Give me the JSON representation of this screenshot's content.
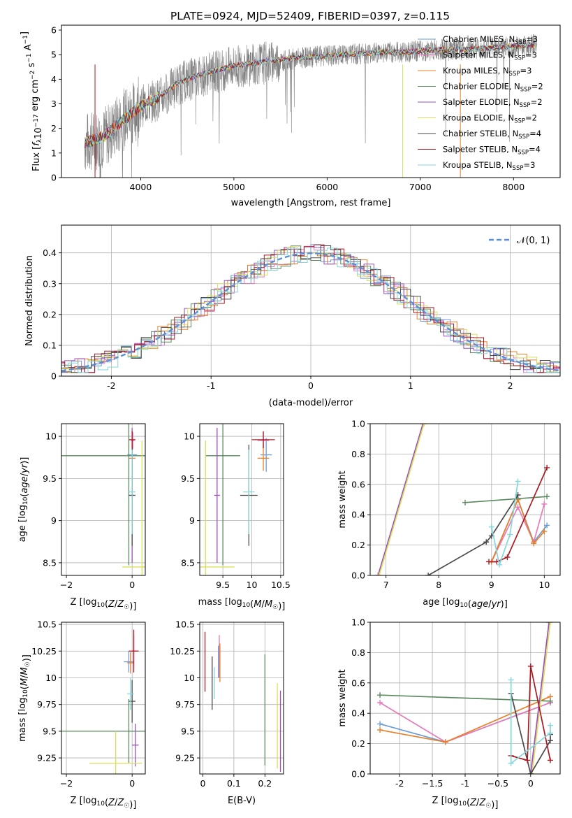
{
  "figure": {
    "title": "PLATE=0924, MJD=52409, FIBERID=0397, z=0.115"
  },
  "legend_models": [
    {
      "name": "Chabrier MILES",
      "nssp": "3",
      "color": "#6a9bd8"
    },
    {
      "name": "Salpeter MILES",
      "nssp": "3",
      "color": "#e77ab8"
    },
    {
      "name": "Kroupa MILES",
      "nssp": "3",
      "color": "#e8802a"
    },
    {
      "name": "Chabrier ELODIE",
      "nssp": "2",
      "color": "#5a8a5e"
    },
    {
      "name": "Salpeter ELODIE",
      "nssp": "2",
      "color": "#9b4fc0"
    },
    {
      "name": "Kroupa ELODIE",
      "nssp": "2",
      "color": "#d8e05a"
    },
    {
      "name": "Chabrier STELIB",
      "nssp": "4",
      "color": "#4a4a4a"
    },
    {
      "name": "Salpeter STELIB",
      "nssp": "4",
      "color": "#a81a22"
    },
    {
      "name": "Kroupa STELIB",
      "nssp": "3",
      "color": "#86d6dc"
    }
  ],
  "chart_data": [
    {
      "id": "spectrum",
      "type": "line",
      "xlabel": "wavelength [Angstrom, rest frame]",
      "ylabel": "Flux [f_λ 10^-17 erg cm^-2 s^-1 A^-1]",
      "xlim": [
        3150,
        8500
      ],
      "ylim": [
        0,
        6.2
      ],
      "xticks": [
        4000,
        5000,
        6000,
        7000,
        8000
      ],
      "yticks": [
        0,
        1,
        2,
        3,
        4,
        5,
        6
      ],
      "grid": false,
      "legend": "right",
      "observed": {
        "color": "#808080",
        "x": [
          3400,
          3600,
          3800,
          4000,
          4200,
          4400,
          4600,
          4800,
          5000,
          5200,
          5400,
          5600,
          5800,
          6000,
          6200,
          6400,
          6600,
          6800,
          7000,
          7200,
          7400,
          7600,
          7800,
          8000,
          8200
        ],
        "y": [
          1.4,
          1.6,
          2.3,
          2.9,
          3.2,
          3.8,
          4.1,
          4.3,
          4.5,
          4.6,
          4.7,
          4.8,
          4.9,
          4.95,
          5.0,
          5.05,
          5.1,
          5.1,
          5.15,
          5.2,
          5.2,
          5.25,
          5.3,
          5.35,
          5.4
        ]
      },
      "model": {
        "x": [
          3400,
          3600,
          3800,
          4000,
          4200,
          4400,
          4600,
          4800,
          5000,
          5200,
          5400,
          5600,
          5800,
          6000,
          6200,
          6400,
          6600,
          6800,
          7000,
          7200,
          7400,
          7600,
          7800,
          8000,
          8200
        ],
        "y": [
          1.4,
          1.65,
          2.3,
          2.9,
          3.3,
          3.85,
          4.15,
          4.35,
          4.55,
          4.65,
          4.75,
          4.85,
          4.9,
          4.95,
          5.0,
          5.05,
          5.1,
          5.1,
          5.15,
          5.2,
          5.2,
          5.25,
          5.3,
          5.35,
          5.4
        ]
      }
    },
    {
      "id": "residuals",
      "type": "line",
      "xlabel": "(data-model)/error",
      "ylabel": "Normed distribution",
      "xlim": [
        -2.5,
        2.5
      ],
      "ylim": [
        0,
        0.49
      ],
      "xticks": [
        -2,
        -1,
        0,
        1,
        2
      ],
      "yticks": [
        0.0,
        0.1,
        0.2,
        0.3,
        0.4
      ],
      "grid": true,
      "legend": "top-right",
      "normal_label": "𝒩(0, 1)",
      "normal_color": "#5b8fd6"
    },
    {
      "id": "age-Z",
      "type": "scatter",
      "xlabel": "Z [log10(Z/Z☉)]",
      "ylabel": "age [log10(age/yr)]",
      "xlim": [
        -2.15,
        0.4
      ],
      "ylim": [
        8.35,
        10.15
      ],
      "xticks": [
        -2,
        0
      ],
      "yticks": [
        8.5,
        9.0,
        9.5,
        10.0
      ],
      "grid": true,
      "points": [
        {
          "model": 0,
          "x": 0.0,
          "y": 9.78,
          "xerr": 0.15,
          "yerr": 0.2
        },
        {
          "model": 1,
          "x": 0.02,
          "y": 9.95,
          "xerr": 0.05,
          "yerr": 0.1
        },
        {
          "model": 2,
          "x": 0.0,
          "y": 9.74,
          "xerr": 0.1,
          "yerr": 0.15
        },
        {
          "model": 3,
          "x": -0.1,
          "y": 9.77,
          "xerr": 2.1,
          "yerr": 1.3
        },
        {
          "model": 4,
          "x": 0.0,
          "y": 9.3,
          "xerr": 0.05,
          "yerr": 0.8
        },
        {
          "model": 5,
          "x": 0.3,
          "y": 8.45,
          "xerr": 0.6,
          "yerr": 1.5
        },
        {
          "model": 6,
          "x": 0.0,
          "y": 9.3,
          "xerr": 0.1,
          "yerr": 0.6
        },
        {
          "model": 7,
          "x": 0.0,
          "y": 9.96,
          "xerr": 0.1,
          "yerr": 0.1
        },
        {
          "model": 8,
          "x": 0.0,
          "y": 9.34,
          "xerr": 0.1,
          "yerr": 0.5
        }
      ]
    },
    {
      "id": "age-mass",
      "type": "scatter",
      "xlabel": "mass [log10(M/M☉)]",
      "ylabel": "",
      "xlim": [
        9.1,
        10.55
      ],
      "ylim": [
        8.35,
        10.15
      ],
      "xticks": [
        9.5,
        10.0,
        10.5
      ],
      "yticks": [
        8.5,
        9.0,
        9.5,
        10.0
      ],
      "grid": true,
      "points": [
        {
          "model": 0,
          "x": 10.25,
          "y": 9.78,
          "xerr": 0.1,
          "yerr": 0.2
        },
        {
          "model": 1,
          "x": 10.2,
          "y": 9.95,
          "xerr": 0.1,
          "yerr": 0.1
        },
        {
          "model": 2,
          "x": 10.2,
          "y": 9.74,
          "xerr": 0.1,
          "yerr": 0.15
        },
        {
          "model": 3,
          "x": 9.5,
          "y": 9.77,
          "xerr": 0.3,
          "yerr": 1.3
        },
        {
          "model": 4,
          "x": 9.4,
          "y": 9.3,
          "xerr": 0.05,
          "yerr": 0.8
        },
        {
          "model": 5,
          "x": 9.2,
          "y": 8.45,
          "xerr": 0.5,
          "yerr": 1.5
        },
        {
          "model": 6,
          "x": 9.95,
          "y": 9.3,
          "xerr": 0.15,
          "yerr": 0.6
        },
        {
          "model": 7,
          "x": 10.2,
          "y": 9.96,
          "xerr": 0.2,
          "yerr": 0.1
        },
        {
          "model": 8,
          "x": 9.95,
          "y": 9.34,
          "xerr": 0.1,
          "yerr": 0.5
        }
      ]
    },
    {
      "id": "weight-age",
      "type": "line",
      "xlabel": "age [log10(age/yr)]",
      "ylabel": "mass weight",
      "xlim": [
        6.7,
        10.3
      ],
      "ylim": [
        0,
        1.0
      ],
      "xticks": [
        7,
        8,
        9,
        10
      ],
      "yticks": [
        0.0,
        0.2,
        0.4,
        0.6,
        0.8,
        1.0
      ],
      "grid": true,
      "series": [
        {
          "model": 0,
          "x": [
            9.0,
            9.5,
            9.8,
            10.05
          ],
          "y": [
            0.09,
            0.5,
            0.22,
            0.33
          ]
        },
        {
          "model": 1,
          "x": [
            9.0,
            9.5,
            9.8,
            10.0
          ],
          "y": [
            0.09,
            0.45,
            0.22,
            0.47
          ]
        },
        {
          "model": 2,
          "x": [
            9.0,
            9.5,
            9.8,
            10.0
          ],
          "y": [
            0.09,
            0.5,
            0.21,
            0.29
          ]
        },
        {
          "model": 3,
          "x": [
            8.5,
            10.05
          ],
          "y": [
            0.48,
            0.52
          ]
        },
        {
          "model": 4,
          "x": [
            6.85,
            7.7
          ],
          "y": [
            0.0,
            1.0
          ]
        },
        {
          "model": 5,
          "x": [
            6.87,
            7.72
          ],
          "y": [
            0.0,
            1.0
          ]
        },
        {
          "model": 6,
          "x": [
            7.8,
            8.9,
            9.0,
            9.5
          ],
          "y": [
            0.0,
            0.22,
            0.26,
            0.53
          ]
        },
        {
          "model": 7,
          "x": [
            8.95,
            9.1,
            9.3,
            10.05
          ],
          "y": [
            0.09,
            0.09,
            0.12,
            0.71
          ]
        },
        {
          "model": 8,
          "x": [
            9.0,
            9.15,
            9.35,
            9.5
          ],
          "y": [
            0.32,
            0.07,
            0.27,
            0.62
          ]
        }
      ]
    },
    {
      "id": "mass-Z",
      "type": "scatter",
      "xlabel": "Z [log10(Z/Z☉)]",
      "ylabel": "mass [log10(M/M☉)]",
      "xlim": [
        -2.15,
        0.4
      ],
      "ylim": [
        9.1,
        10.52
      ],
      "xticks": [
        -2,
        0
      ],
      "yticks": [
        9.25,
        9.5,
        9.75,
        10.0,
        10.25,
        10.5
      ],
      "grid": true,
      "points": [
        {
          "model": 0,
          "x": -0.1,
          "y": 10.15,
          "xerr": 0.15,
          "yerr": 0.1
        },
        {
          "model": 1,
          "x": 0.05,
          "y": 10.25,
          "xerr": 0.05,
          "yerr": 0.15
        },
        {
          "model": 2,
          "x": -0.05,
          "y": 10.14,
          "xerr": 0.1,
          "yerr": 0.1
        },
        {
          "model": 3,
          "x": -0.1,
          "y": 9.5,
          "xerr": 2.1,
          "yerr": 0.3
        },
        {
          "model": 4,
          "x": 0.1,
          "y": 9.37,
          "xerr": 0.1,
          "yerr": 0.2
        },
        {
          "model": 5,
          "x": -0.5,
          "y": 9.2,
          "xerr": 0.8,
          "yerr": 0.3
        },
        {
          "model": 6,
          "x": 0.0,
          "y": 9.78,
          "xerr": 0.1,
          "yerr": 0.2
        },
        {
          "model": 7,
          "x": 0.05,
          "y": 10.25,
          "xerr": 0.15,
          "yerr": 0.2
        },
        {
          "model": 8,
          "x": -0.05,
          "y": 9.85,
          "xerr": 0.1,
          "yerr": 0.15
        }
      ]
    },
    {
      "id": "mass-ebv",
      "type": "scatter",
      "xlabel": "E(B-V)",
      "ylabel": "",
      "xlim": [
        -0.01,
        0.26
      ],
      "ylim": [
        9.1,
        10.52
      ],
      "xticks": [
        0.0,
        0.1,
        0.2
      ],
      "yticks": [
        9.25,
        9.5,
        9.75,
        10.0,
        10.25,
        10.5
      ],
      "grid": true,
      "points": [
        {
          "model": 0,
          "x": 0.05,
          "y": 10.15,
          "yerr": 0.15
        },
        {
          "model": 1,
          "x": 0.053,
          "y": 10.2,
          "yerr": 0.2
        },
        {
          "model": 2,
          "x": 0.055,
          "y": 10.14,
          "yerr": 0.18
        },
        {
          "model": 3,
          "x": 0.2,
          "y": 9.7,
          "yerr": 0.52
        },
        {
          "model": 4,
          "x": 0.25,
          "y": 9.5,
          "yerr": 0.38
        },
        {
          "model": 5,
          "x": 0.24,
          "y": 9.55,
          "yerr": 0.4
        },
        {
          "model": 6,
          "x": 0.03,
          "y": 9.95,
          "yerr": 0.25
        },
        {
          "model": 7,
          "x": 0.007,
          "y": 10.15,
          "yerr": 0.28
        },
        {
          "model": 8,
          "x": 0.037,
          "y": 9.95,
          "yerr": 0.15
        }
      ]
    },
    {
      "id": "weight-Z",
      "type": "line",
      "xlabel": "Z [log10(Z/Z☉)]",
      "ylabel": "mass weight",
      "xlim": [
        -2.45,
        0.45
      ],
      "ylim": [
        0,
        1.0
      ],
      "xticks": [
        -2.0,
        -1.5,
        -1.0,
        -0.5,
        0.0
      ],
      "yticks": [
        0.0,
        0.2,
        0.4,
        0.6,
        0.8,
        1.0
      ],
      "grid": true,
      "series": [
        {
          "model": 0,
          "x": [
            -2.3,
            -1.3,
            0.3
          ],
          "y": [
            0.33,
            0.21,
            0.47
          ]
        },
        {
          "model": 1,
          "x": [
            -2.3,
            -1.3,
            0.3
          ],
          "y": [
            0.47,
            0.21,
            0.47
          ]
        },
        {
          "model": 2,
          "x": [
            -2.3,
            -1.3,
            0.3
          ],
          "y": [
            0.29,
            0.21,
            0.51
          ]
        },
        {
          "model": 3,
          "x": [
            -2.3,
            0.3
          ],
          "y": [
            0.52,
            0.48
          ]
        },
        {
          "model": 4,
          "x": [
            0.0,
            0.28
          ],
          "y": [
            0.0,
            1.0
          ]
        },
        {
          "model": 5,
          "x": [
            0.02,
            0.3
          ],
          "y": [
            0.0,
            1.0
          ]
        },
        {
          "model": 6,
          "x": [
            -0.3,
            0.0,
            0.3,
            0.3
          ],
          "y": [
            0.53,
            0.0,
            0.22,
            0.26
          ]
        },
        {
          "model": 7,
          "x": [
            -0.3,
            -0.05,
            0.0,
            0.3
          ],
          "y": [
            0.12,
            0.09,
            0.71,
            0.09
          ]
        },
        {
          "model": 8,
          "x": [
            -0.3,
            -0.3,
            0.3,
            0.3
          ],
          "y": [
            0.62,
            0.07,
            0.27,
            0.32
          ]
        }
      ]
    }
  ]
}
